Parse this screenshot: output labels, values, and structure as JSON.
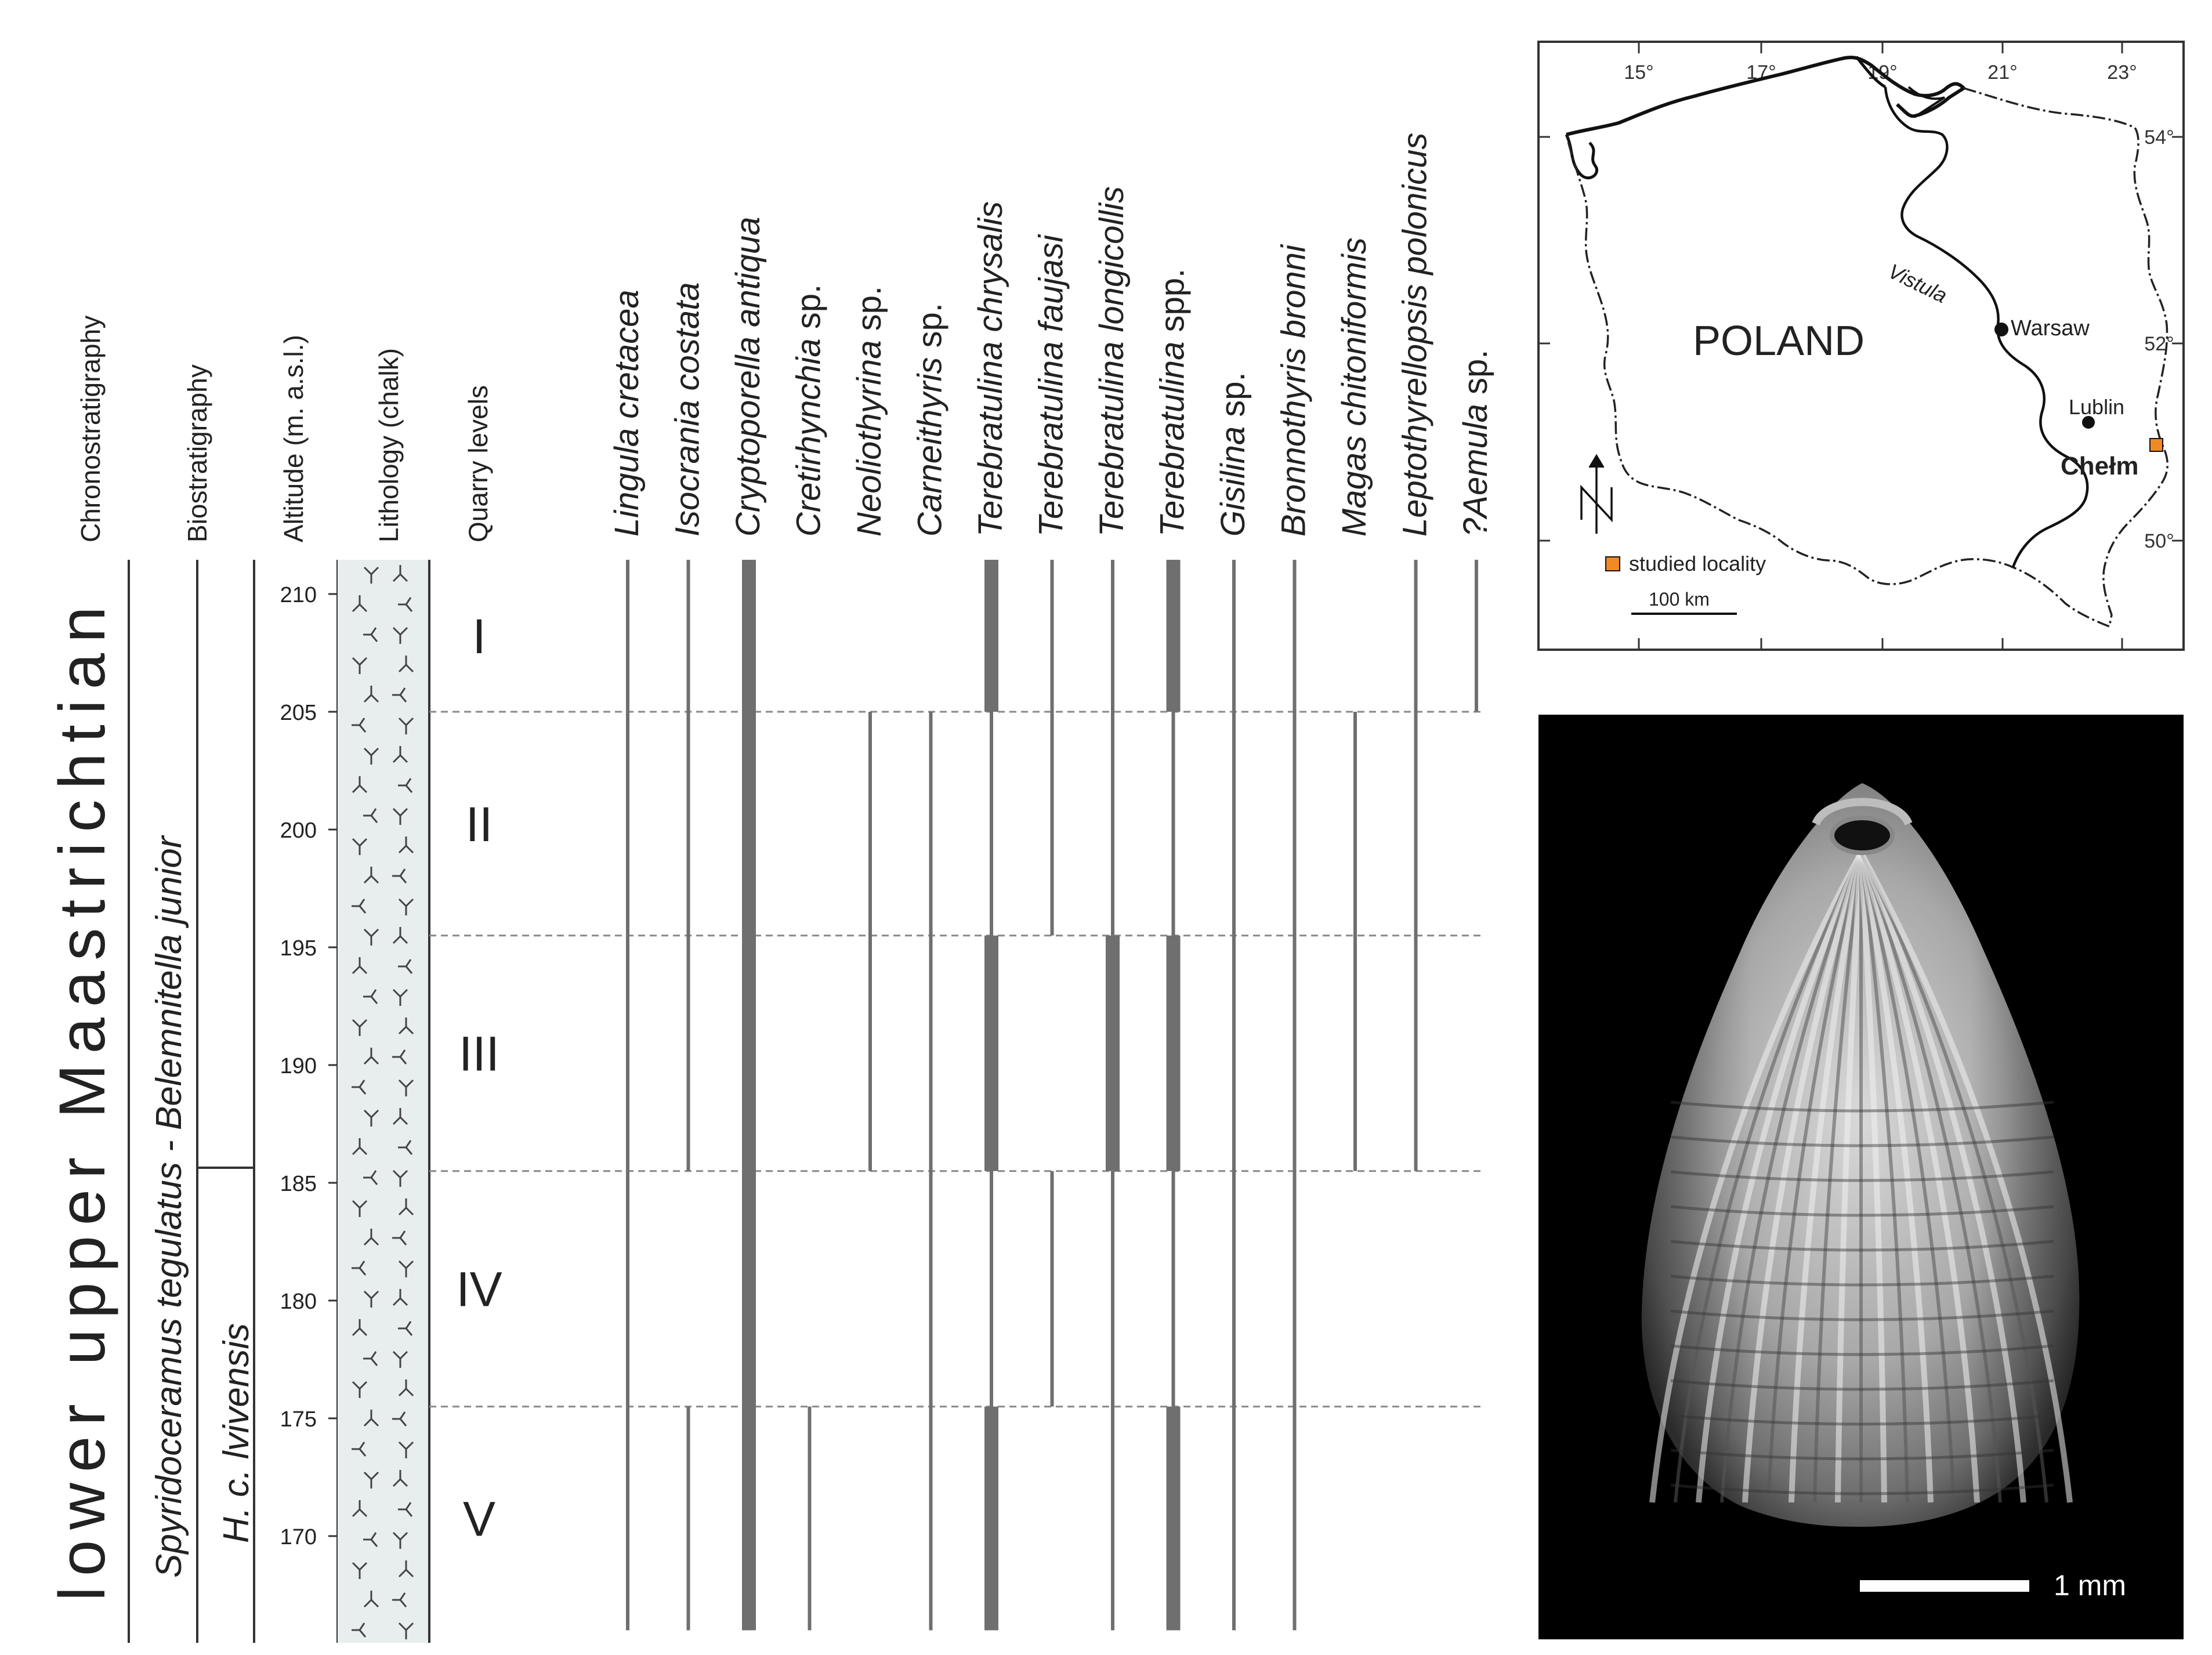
{
  "columns": {
    "chronostratigraphy": "Chronostratigraphy",
    "biostratigraphy": "Biostratigraphy",
    "altitude": "Altitude (m. a.s.l.)",
    "lithology": "Lithology (chalk)",
    "quarry_levels": "Quarry levels"
  },
  "chrono_unit": "lower upper Maastrichtian",
  "biozones": {
    "upper": "Spyridoceramus tegulatus - Belemnitella junior",
    "lower_species": "H. c. lvivensis"
  },
  "altitude_ticks": [
    {
      "value": 210,
      "label": "210"
    },
    {
      "value": 205,
      "label": "205"
    },
    {
      "value": 200,
      "label": "200"
    },
    {
      "value": 195,
      "label": "195"
    },
    {
      "value": 190,
      "label": "190"
    },
    {
      "value": 185,
      "label": "185"
    },
    {
      "value": 180,
      "label": "180"
    },
    {
      "value": 175,
      "label": "175"
    },
    {
      "value": 170,
      "label": "170"
    }
  ],
  "quarry_levels": [
    {
      "label": "I",
      "from": 205,
      "to": 212
    },
    {
      "label": "II",
      "from": 195.5,
      "to": 205
    },
    {
      "label": "III",
      "from": 185.5,
      "to": 195.5
    },
    {
      "label": "IV",
      "from": 175.5,
      "to": 185.5
    },
    {
      "label": "V",
      "from": 166,
      "to": 175.5
    }
  ],
  "level_boundaries": [
    205,
    195.5,
    185.5,
    175.5
  ],
  "taxa": [
    {
      "genus": "Lingula",
      "epithet": "cretacea",
      "ranges": [
        {
          "from": 166,
          "to": 212,
          "abundance": "thin"
        }
      ]
    },
    {
      "genus": "Isocrania",
      "epithet": "costata",
      "ranges": [
        {
          "from": 185.5,
          "to": 212,
          "abundance": "thin"
        },
        {
          "from": 166,
          "to": 175.5,
          "abundance": "thin"
        }
      ]
    },
    {
      "genus": "Cryptoporella",
      "epithet": "antiqua",
      "ranges": [
        {
          "from": 166,
          "to": 212,
          "abundance": "thick"
        }
      ]
    },
    {
      "genus": "Cretirhynchia",
      "epithet": "sp.",
      "ranges": [
        {
          "from": 166,
          "to": 175.5,
          "abundance": "thin"
        }
      ]
    },
    {
      "genus": "Neoliothyrina",
      "epithet": "sp.",
      "ranges": [
        {
          "from": 185.5,
          "to": 205,
          "abundance": "thin"
        }
      ]
    },
    {
      "genus": "Carneithyris",
      "epithet": "sp.",
      "ranges": [
        {
          "from": 166,
          "to": 205,
          "abundance": "thin"
        }
      ]
    },
    {
      "genus": "Terebratulina",
      "epithet": "chrysalis",
      "ranges": [
        {
          "from": 205,
          "to": 212,
          "abundance": "thick"
        },
        {
          "from": 195.5,
          "to": 205,
          "abundance": "thin"
        },
        {
          "from": 185.5,
          "to": 195.5,
          "abundance": "thick"
        },
        {
          "from": 175.5,
          "to": 185.5,
          "abundance": "thin"
        },
        {
          "from": 166,
          "to": 175.5,
          "abundance": "thick"
        }
      ]
    },
    {
      "genus": "Terebratulina",
      "epithet": "faujasi",
      "ranges": [
        {
          "from": 195.5,
          "to": 212,
          "abundance": "thin"
        },
        {
          "from": 175.5,
          "to": 185.5,
          "abundance": "thin"
        }
      ]
    },
    {
      "genus": "Terebratulina",
      "epithet": "longicollis",
      "ranges": [
        {
          "from": 195.5,
          "to": 212,
          "abundance": "thin"
        },
        {
          "from": 185.5,
          "to": 195.5,
          "abundance": "thick"
        },
        {
          "from": 166,
          "to": 185.5,
          "abundance": "thin"
        }
      ]
    },
    {
      "genus": "Terebratulina",
      "epithet": "spp.",
      "ranges": [
        {
          "from": 205,
          "to": 212,
          "abundance": "thick"
        },
        {
          "from": 195.5,
          "to": 205,
          "abundance": "thin"
        },
        {
          "from": 185.5,
          "to": 195.5,
          "abundance": "thick"
        },
        {
          "from": 175.5,
          "to": 185.5,
          "abundance": "thin"
        },
        {
          "from": 166,
          "to": 175.5,
          "abundance": "thick"
        }
      ]
    },
    {
      "genus": "Gisilina",
      "epithet": "sp.",
      "ranges": [
        {
          "from": 166,
          "to": 212,
          "abundance": "thin"
        }
      ]
    },
    {
      "genus": "Bronnothyris",
      "epithet": "bronni",
      "ranges": [
        {
          "from": 166,
          "to": 212,
          "abundance": "thin"
        }
      ]
    },
    {
      "genus": "Magas",
      "epithet": "chitoniformis",
      "ranges": [
        {
          "from": 185.5,
          "to": 205,
          "abundance": "thin"
        }
      ]
    },
    {
      "genus": "Leptothyrellopsis",
      "epithet": "polonicus",
      "ranges": [
        {
          "from": 185.5,
          "to": 212,
          "abundance": "thin"
        }
      ]
    },
    {
      "genus": "?Aemula",
      "epithet": "sp.",
      "ranges": [
        {
          "from": 205,
          "to": 212,
          "abundance": "thin"
        }
      ]
    }
  ],
  "map": {
    "country": "POLAND",
    "river": "Vistula",
    "cities": [
      {
        "name": "Warsaw",
        "lon": 21.0,
        "lat": 52.23
      },
      {
        "name": "Lublin",
        "lon": 22.55,
        "lat": 51.25
      }
    ],
    "studied_locality": {
      "name": "Chełm",
      "lon": 23.47,
      "lat": 51.13
    },
    "lon_ticks": [
      "15°",
      "17°",
      "19°",
      "21°",
      "23°"
    ],
    "lat_ticks": [
      "54°",
      "52°",
      "50°"
    ],
    "legend_label": "studied locality",
    "scale_label": "100 km",
    "colors": {
      "locality": "#f08a24"
    }
  },
  "photo": {
    "scale_label": "1 mm"
  }
}
